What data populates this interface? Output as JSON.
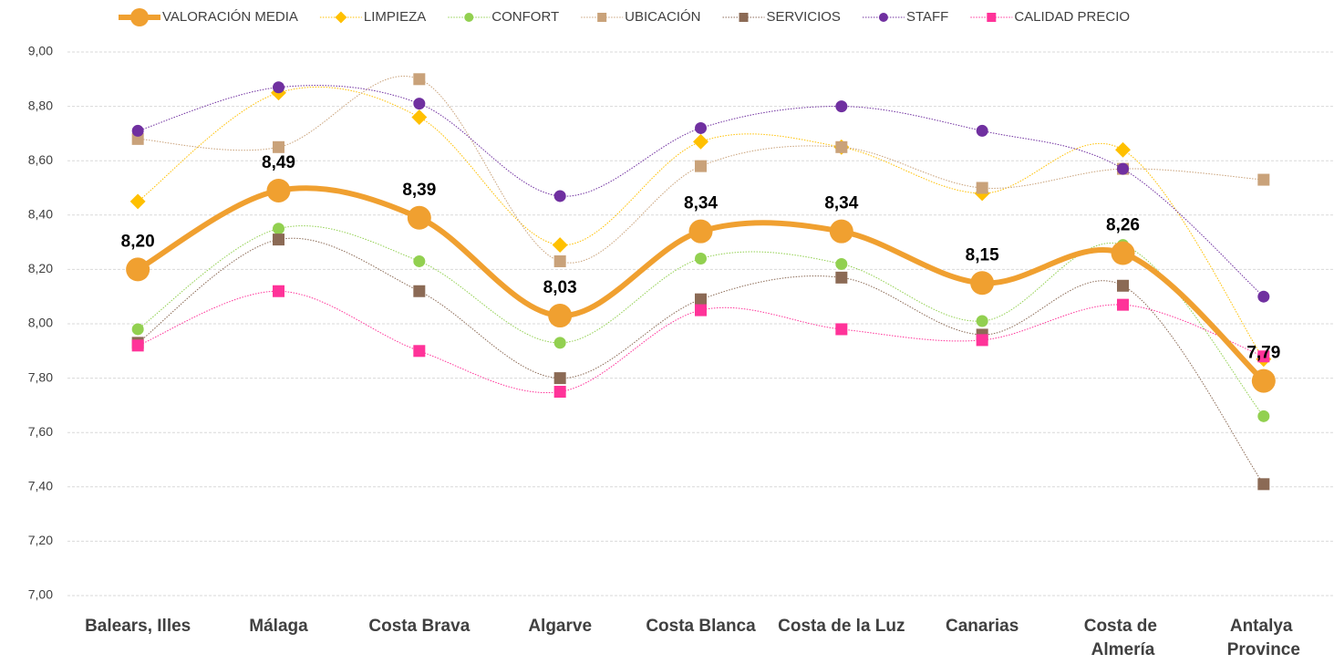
{
  "chart_data": {
    "type": "line",
    "categories": [
      "Balears, Illes",
      "Málaga",
      "Costa Brava",
      "Algarve",
      "Costa Blanca",
      "Costa de la Luz",
      "Canarias",
      "Costa de Almería",
      "Antalya Province"
    ],
    "series": [
      {
        "name": "VALORACIÓN MEDIA",
        "color": "#f0a030",
        "marker": "circle",
        "values": [
          8.2,
          8.49,
          8.39,
          8.03,
          8.34,
          8.34,
          8.15,
          8.26,
          7.79
        ],
        "value_labels": [
          "8,20",
          "8,49",
          "8,39",
          "8,03",
          "8,34",
          "8,34",
          "8,15",
          "8,26",
          "7,79"
        ]
      },
      {
        "name": "LIMPIEZA",
        "color": "#ffc000",
        "marker": "diamond",
        "values": [
          8.45,
          8.85,
          8.76,
          8.29,
          8.67,
          8.65,
          8.48,
          8.64,
          7.87
        ]
      },
      {
        "name": "CONFORT",
        "color": "#92d050",
        "marker": "circle",
        "values": [
          7.98,
          8.35,
          8.23,
          7.93,
          8.24,
          8.22,
          8.01,
          8.29,
          7.66
        ]
      },
      {
        "name": "UBICACIÓN",
        "color": "#c9a27a",
        "marker": "square",
        "values": [
          8.68,
          8.65,
          8.9,
          8.23,
          8.58,
          8.65,
          8.5,
          8.57,
          8.53
        ]
      },
      {
        "name": "SERVICIOS",
        "color": "#8b6a55",
        "marker": "square",
        "values": [
          7.93,
          8.31,
          8.12,
          7.8,
          8.09,
          8.17,
          7.96,
          8.14,
          7.41
        ]
      },
      {
        "name": "STAFF",
        "color": "#7030a0",
        "marker": "circle",
        "values": [
          8.71,
          8.87,
          8.81,
          8.47,
          8.72,
          8.8,
          8.71,
          8.57,
          8.1
        ]
      },
      {
        "name": "CALIDAD PRECIO",
        "color": "#ff3399",
        "marker": "square",
        "values": [
          7.92,
          8.12,
          7.9,
          7.75,
          8.05,
          7.98,
          7.94,
          8.07,
          7.88
        ]
      }
    ],
    "ylim": [
      7,
      9
    ],
    "yticks": [
      {
        "value": 7,
        "label": "7,00"
      },
      {
        "value": 7.2,
        "label": "7,20"
      },
      {
        "value": 7.4,
        "label": "7,40"
      },
      {
        "value": 7.6,
        "label": "7,60"
      },
      {
        "value": 7.8,
        "label": "7,80"
      },
      {
        "value": 8,
        "label": "8,00"
      },
      {
        "value": 8.2,
        "label": "8,20"
      },
      {
        "value": 8.4,
        "label": "8,40"
      },
      {
        "value": 8.6,
        "label": "8,60"
      },
      {
        "value": 8.8,
        "label": "8,80"
      },
      {
        "value": 9,
        "label": "9,00"
      }
    ],
    "grid": true,
    "legend": "top",
    "smooth": true
  }
}
